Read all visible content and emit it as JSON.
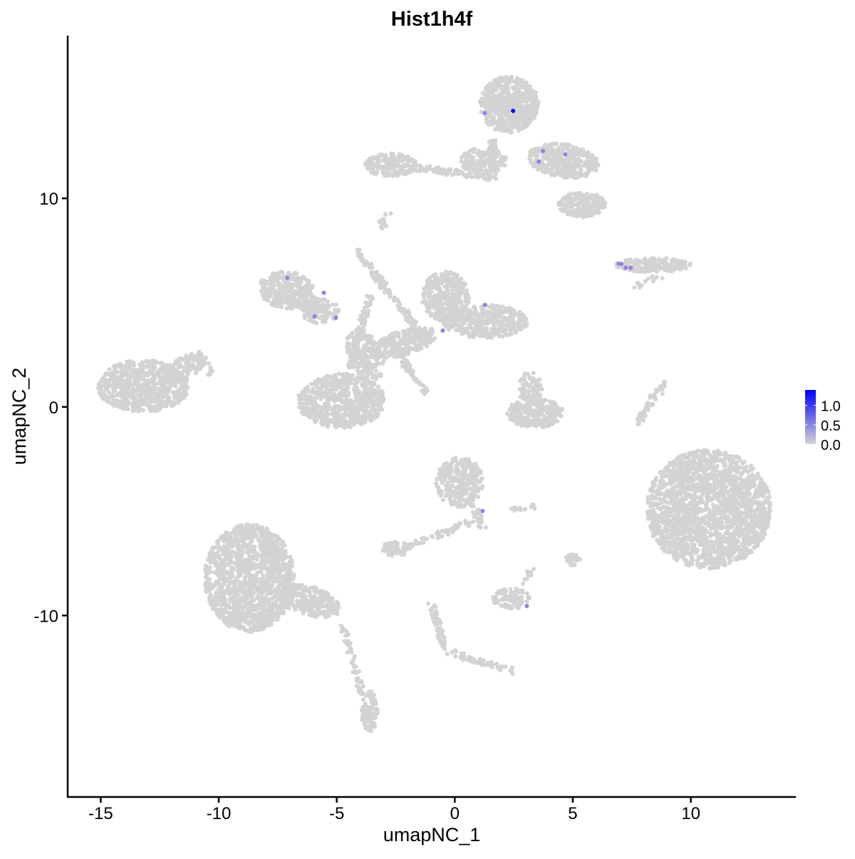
{
  "chart_data": {
    "type": "scatter",
    "title": "Hist1h4f",
    "xlabel": "umapNC_1",
    "ylabel": "umapNC_2",
    "xlim": [
      -16.4,
      14.45
    ],
    "ylim": [
      -18.7,
      17.8
    ],
    "xticks": [
      -15,
      -10,
      -5,
      0,
      5,
      10
    ],
    "xtick_labels": [
      "-15",
      "-10",
      "-5",
      "0",
      "5",
      "10"
    ],
    "yticks": [
      -10,
      0,
      10
    ],
    "ytick_labels": [
      "-10",
      "0",
      "10"
    ],
    "grid": false,
    "background_color": "#d3d3d3",
    "colorbar": {
      "low_color": "#d3d3d3",
      "high_color": "#0000ff",
      "range": [
        0,
        1.4
      ],
      "ticks": [
        0,
        0.5,
        1.0
      ],
      "tick_labels": [
        "0.0",
        "0.5",
        "1.0"
      ],
      "placement": "right"
    },
    "clusters": [
      {
        "cx": -13.2,
        "cy": 1.0,
        "rx": 1.95,
        "ry": 1.25,
        "angle": 0,
        "n": 700
      },
      {
        "cx": -11.4,
        "cy": 1.9,
        "rx": 0.9,
        "ry": 0.5,
        "angle": 35,
        "n": 120
      },
      {
        "cx": -7.1,
        "cy": 5.6,
        "rx": 1.2,
        "ry": 0.9,
        "angle": -10,
        "n": 300
      },
      {
        "cx": -5.7,
        "cy": 4.6,
        "rx": 0.8,
        "ry": 0.6,
        "angle": 0,
        "n": 120
      },
      {
        "cx": -4.8,
        "cy": 0.3,
        "rx": 1.85,
        "ry": 1.3,
        "angle": 0,
        "n": 700
      },
      {
        "cx": -3.8,
        "cy": 2.5,
        "rx": 0.7,
        "ry": 1.3,
        "angle": 20,
        "n": 200
      },
      {
        "cx": -0.4,
        "cy": 5.3,
        "rx": 1.0,
        "ry": 1.2,
        "angle": 0,
        "n": 350
      },
      {
        "cx": 1.3,
        "cy": 4.1,
        "rx": 1.8,
        "ry": 0.8,
        "angle": 0,
        "n": 400
      },
      {
        "cx": -2.1,
        "cy": 3.1,
        "rx": 1.4,
        "ry": 0.6,
        "angle": 20,
        "n": 250
      },
      {
        "cx": 2.3,
        "cy": 14.5,
        "rx": 1.25,
        "ry": 1.35,
        "angle": 0,
        "n": 600
      },
      {
        "cx": -2.7,
        "cy": 11.6,
        "rx": 1.1,
        "ry": 0.55,
        "angle": 0,
        "n": 180
      },
      {
        "cx": 1.2,
        "cy": 11.8,
        "rx": 1.0,
        "ry": 0.6,
        "angle": 0,
        "n": 150
      },
      {
        "cx": 4.6,
        "cy": 11.8,
        "rx": 1.5,
        "ry": 0.8,
        "angle": -10,
        "n": 350
      },
      {
        "cx": 5.4,
        "cy": 9.7,
        "rx": 1.0,
        "ry": 0.6,
        "angle": 0,
        "n": 200
      },
      {
        "cx": 8.4,
        "cy": 6.8,
        "rx": 1.6,
        "ry": 0.35,
        "angle": 0,
        "n": 180
      },
      {
        "cx": 3.4,
        "cy": -0.3,
        "rx": 1.2,
        "ry": 0.7,
        "angle": 0,
        "n": 250
      },
      {
        "cx": 3.2,
        "cy": 0.9,
        "rx": 0.5,
        "ry": 0.8,
        "angle": 0,
        "n": 80
      },
      {
        "cx": 10.75,
        "cy": -4.9,
        "rx": 2.65,
        "ry": 2.85,
        "angle": 0,
        "n": 2000
      },
      {
        "cx": 0.2,
        "cy": -3.6,
        "rx": 1.0,
        "ry": 1.2,
        "angle": 0,
        "n": 300
      },
      {
        "cx": -8.7,
        "cy": -8.2,
        "rx": 1.9,
        "ry": 2.6,
        "angle": 0,
        "n": 1400
      },
      {
        "cx": -6.2,
        "cy": -9.3,
        "rx": 1.4,
        "ry": 0.7,
        "angle": -20,
        "n": 250
      },
      {
        "cx": -3.6,
        "cy": -14.6,
        "rx": 0.35,
        "ry": 1.0,
        "angle": 0,
        "n": 80
      },
      {
        "cx": -2.5,
        "cy": -6.8,
        "rx": 0.6,
        "ry": 0.35,
        "angle": 0,
        "n": 60
      },
      {
        "cx": 2.4,
        "cy": -9.2,
        "rx": 0.8,
        "ry": 0.5,
        "angle": 0,
        "n": 100
      },
      {
        "cx": 5.0,
        "cy": -7.3,
        "rx": 0.3,
        "ry": 0.3,
        "angle": 0,
        "n": 25
      }
    ],
    "strands": [
      {
        "from": [
          -1.2,
          3.2
        ],
        "to": [
          -4.2,
          7.5
        ],
        "n": 120
      },
      {
        "from": [
          -2.4,
          2.6
        ],
        "to": [
          -1.2,
          0.6
        ],
        "n": 60
      },
      {
        "from": [
          -4.5,
          1.8
        ],
        "to": [
          -3.6,
          5.3
        ],
        "n": 100
      },
      {
        "from": [
          -10.3,
          1.5
        ],
        "to": [
          -10.8,
          2.7
        ],
        "n": 20
      },
      {
        "from": [
          -1.8,
          11.5
        ],
        "to": [
          1.5,
          11.0
        ],
        "n": 90
      },
      {
        "from": [
          1.6,
          12.8
        ],
        "to": [
          1.6,
          10.9
        ],
        "n": 60
      },
      {
        "from": [
          -2.8,
          9.2
        ],
        "to": [
          -3.2,
          8.6
        ],
        "n": 12
      },
      {
        "from": [
          8.9,
          1.2
        ],
        "to": [
          7.7,
          -0.8
        ],
        "n": 60
      },
      {
        "from": [
          0.8,
          -5.5
        ],
        "to": [
          -2.1,
          -6.7
        ],
        "n": 60
      },
      {
        "from": [
          0.7,
          -4.5
        ],
        "to": [
          1.2,
          -5.8
        ],
        "n": 30
      },
      {
        "from": [
          -4.7,
          -10.6
        ],
        "to": [
          -3.6,
          -15.0
        ],
        "n": 60
      },
      {
        "from": [
          -1.0,
          -9.4
        ],
        "to": [
          -0.3,
          -11.9
        ],
        "n": 60
      },
      {
        "from": [
          -0.3,
          -11.7
        ],
        "to": [
          2.5,
          -12.7
        ],
        "n": 60
      },
      {
        "from": [
          3.3,
          -7.6
        ],
        "to": [
          3.0,
          -8.5
        ],
        "n": 12
      },
      {
        "from": [
          2.3,
          -4.9
        ],
        "to": [
          3.5,
          -4.8
        ],
        "n": 12
      },
      {
        "from": [
          7.6,
          5.7
        ],
        "to": [
          8.7,
          6.3
        ],
        "n": 14
      }
    ],
    "expressing_points": [
      {
        "x": 1.27,
        "y": 14.09,
        "value": 0.7
      },
      {
        "x": 2.47,
        "y": 14.19,
        "value": 1.4
      },
      {
        "x": 3.74,
        "y": 12.27,
        "value": 0.7
      },
      {
        "x": 3.56,
        "y": 11.76,
        "value": 0.7
      },
      {
        "x": 4.68,
        "y": 12.1,
        "value": 0.7
      },
      {
        "x": 6.94,
        "y": 6.87,
        "value": 0.7
      },
      {
        "x": 7.06,
        "y": 6.85,
        "value": 0.7
      },
      {
        "x": 7.24,
        "y": 6.67,
        "value": 0.7
      },
      {
        "x": 7.45,
        "y": 6.67,
        "value": 0.7
      },
      {
        "x": -7.09,
        "y": 6.19,
        "value": 0.7
      },
      {
        "x": -5.55,
        "y": 5.47,
        "value": 0.7
      },
      {
        "x": -5.94,
        "y": 4.34,
        "value": 0.7
      },
      {
        "x": -5.04,
        "y": 4.27,
        "value": 0.7
      },
      {
        "x": 1.27,
        "y": 4.89,
        "value": 0.7
      },
      {
        "x": -0.51,
        "y": 3.66,
        "value": 0.7
      },
      {
        "x": 1.18,
        "y": -4.99,
        "value": 0.7
      },
      {
        "x": 3.05,
        "y": -9.54,
        "value": 0.7
      }
    ]
  }
}
